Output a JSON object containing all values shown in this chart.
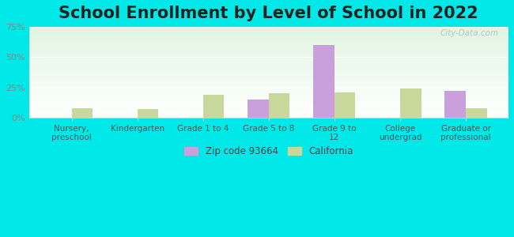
{
  "title": "School Enrollment by Level of School in 2022",
  "categories": [
    "Nursery,\npreschool",
    "Kindergarten",
    "Grade 1 to 4",
    "Grade 5 to 8",
    "Grade 9 to\n12",
    "College\nundergrad",
    "Graduate or\nprofessional"
  ],
  "zip_values": [
    0,
    0,
    0,
    15,
    60,
    0,
    22
  ],
  "ca_values": [
    8,
    7,
    19,
    20,
    21,
    24,
    8
  ],
  "zip_color": "#c9a0dc",
  "ca_color": "#c8d89a",
  "ylim": [
    0,
    75
  ],
  "yticks": [
    0,
    25,
    50,
    75
  ],
  "ytick_labels": [
    "0%",
    "25%",
    "50%",
    "75%"
  ],
  "background_color": "#00e8e8",
  "title_fontsize": 15,
  "legend_zip_label": "Zip code 93664",
  "legend_ca_label": "California",
  "watermark": "City-Data.com"
}
